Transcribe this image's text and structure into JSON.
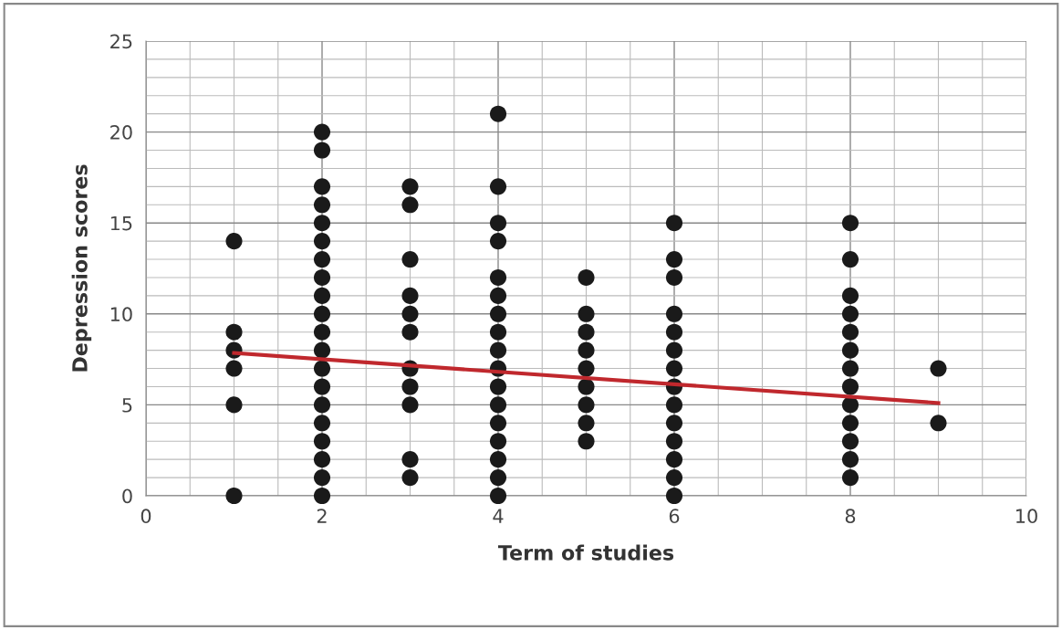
{
  "chart_data": {
    "type": "scatter",
    "xlabel": "Term of studies",
    "ylabel": "Depression scores",
    "xlim": [
      0,
      10
    ],
    "xticks": [
      0,
      2,
      4,
      6,
      8,
      10
    ],
    "ylim": [
      0,
      25
    ],
    "yticks": [
      0,
      5,
      10,
      15,
      20,
      25
    ],
    "grid": true,
    "series": [
      {
        "color": "#1a1a1a",
        "marker": "circle",
        "x": [
          1,
          1,
          1,
          1,
          1,
          1,
          2,
          2,
          2,
          2,
          2,
          2,
          2,
          2,
          2,
          2,
          2,
          2,
          2,
          2,
          2,
          2,
          2,
          2,
          2,
          2,
          3,
          3,
          3,
          3,
          3,
          3,
          3,
          3,
          3,
          3,
          3,
          4,
          4,
          4,
          4,
          4,
          4,
          4,
          4,
          4,
          4,
          4,
          4,
          4,
          4,
          4,
          4,
          4,
          5,
          5,
          5,
          5,
          5,
          5,
          5,
          5,
          5,
          6,
          6,
          6,
          6,
          6,
          6,
          6,
          6,
          6,
          6,
          6,
          6,
          6,
          6,
          8,
          8,
          8,
          8,
          8,
          8,
          8,
          8,
          8,
          8,
          8,
          8,
          8,
          9,
          9
        ],
        "values": [
          0,
          5,
          7,
          8,
          9,
          14,
          0,
          1,
          2,
          3,
          4,
          5,
          6,
          7,
          8,
          9,
          10,
          11,
          12,
          13,
          14,
          15,
          16,
          17,
          19,
          20,
          1,
          2,
          5,
          6,
          7,
          9,
          10,
          11,
          13,
          16,
          17,
          0,
          1,
          2,
          3,
          4,
          5,
          6,
          7,
          8,
          9,
          10,
          11,
          12,
          14,
          15,
          17,
          21,
          3,
          4,
          5,
          6,
          7,
          8,
          9,
          10,
          12,
          0,
          1,
          2,
          3,
          4,
          5,
          6,
          7,
          8,
          9,
          10,
          12,
          13,
          15,
          1,
          2,
          3,
          4,
          5,
          6,
          7,
          8,
          9,
          10,
          11,
          13,
          15,
          4,
          7
        ]
      },
      {
        "type": "line",
        "color": "#c0282d",
        "x": [
          1,
          9
        ],
        "values": [
          7.85,
          5.1
        ]
      }
    ]
  }
}
